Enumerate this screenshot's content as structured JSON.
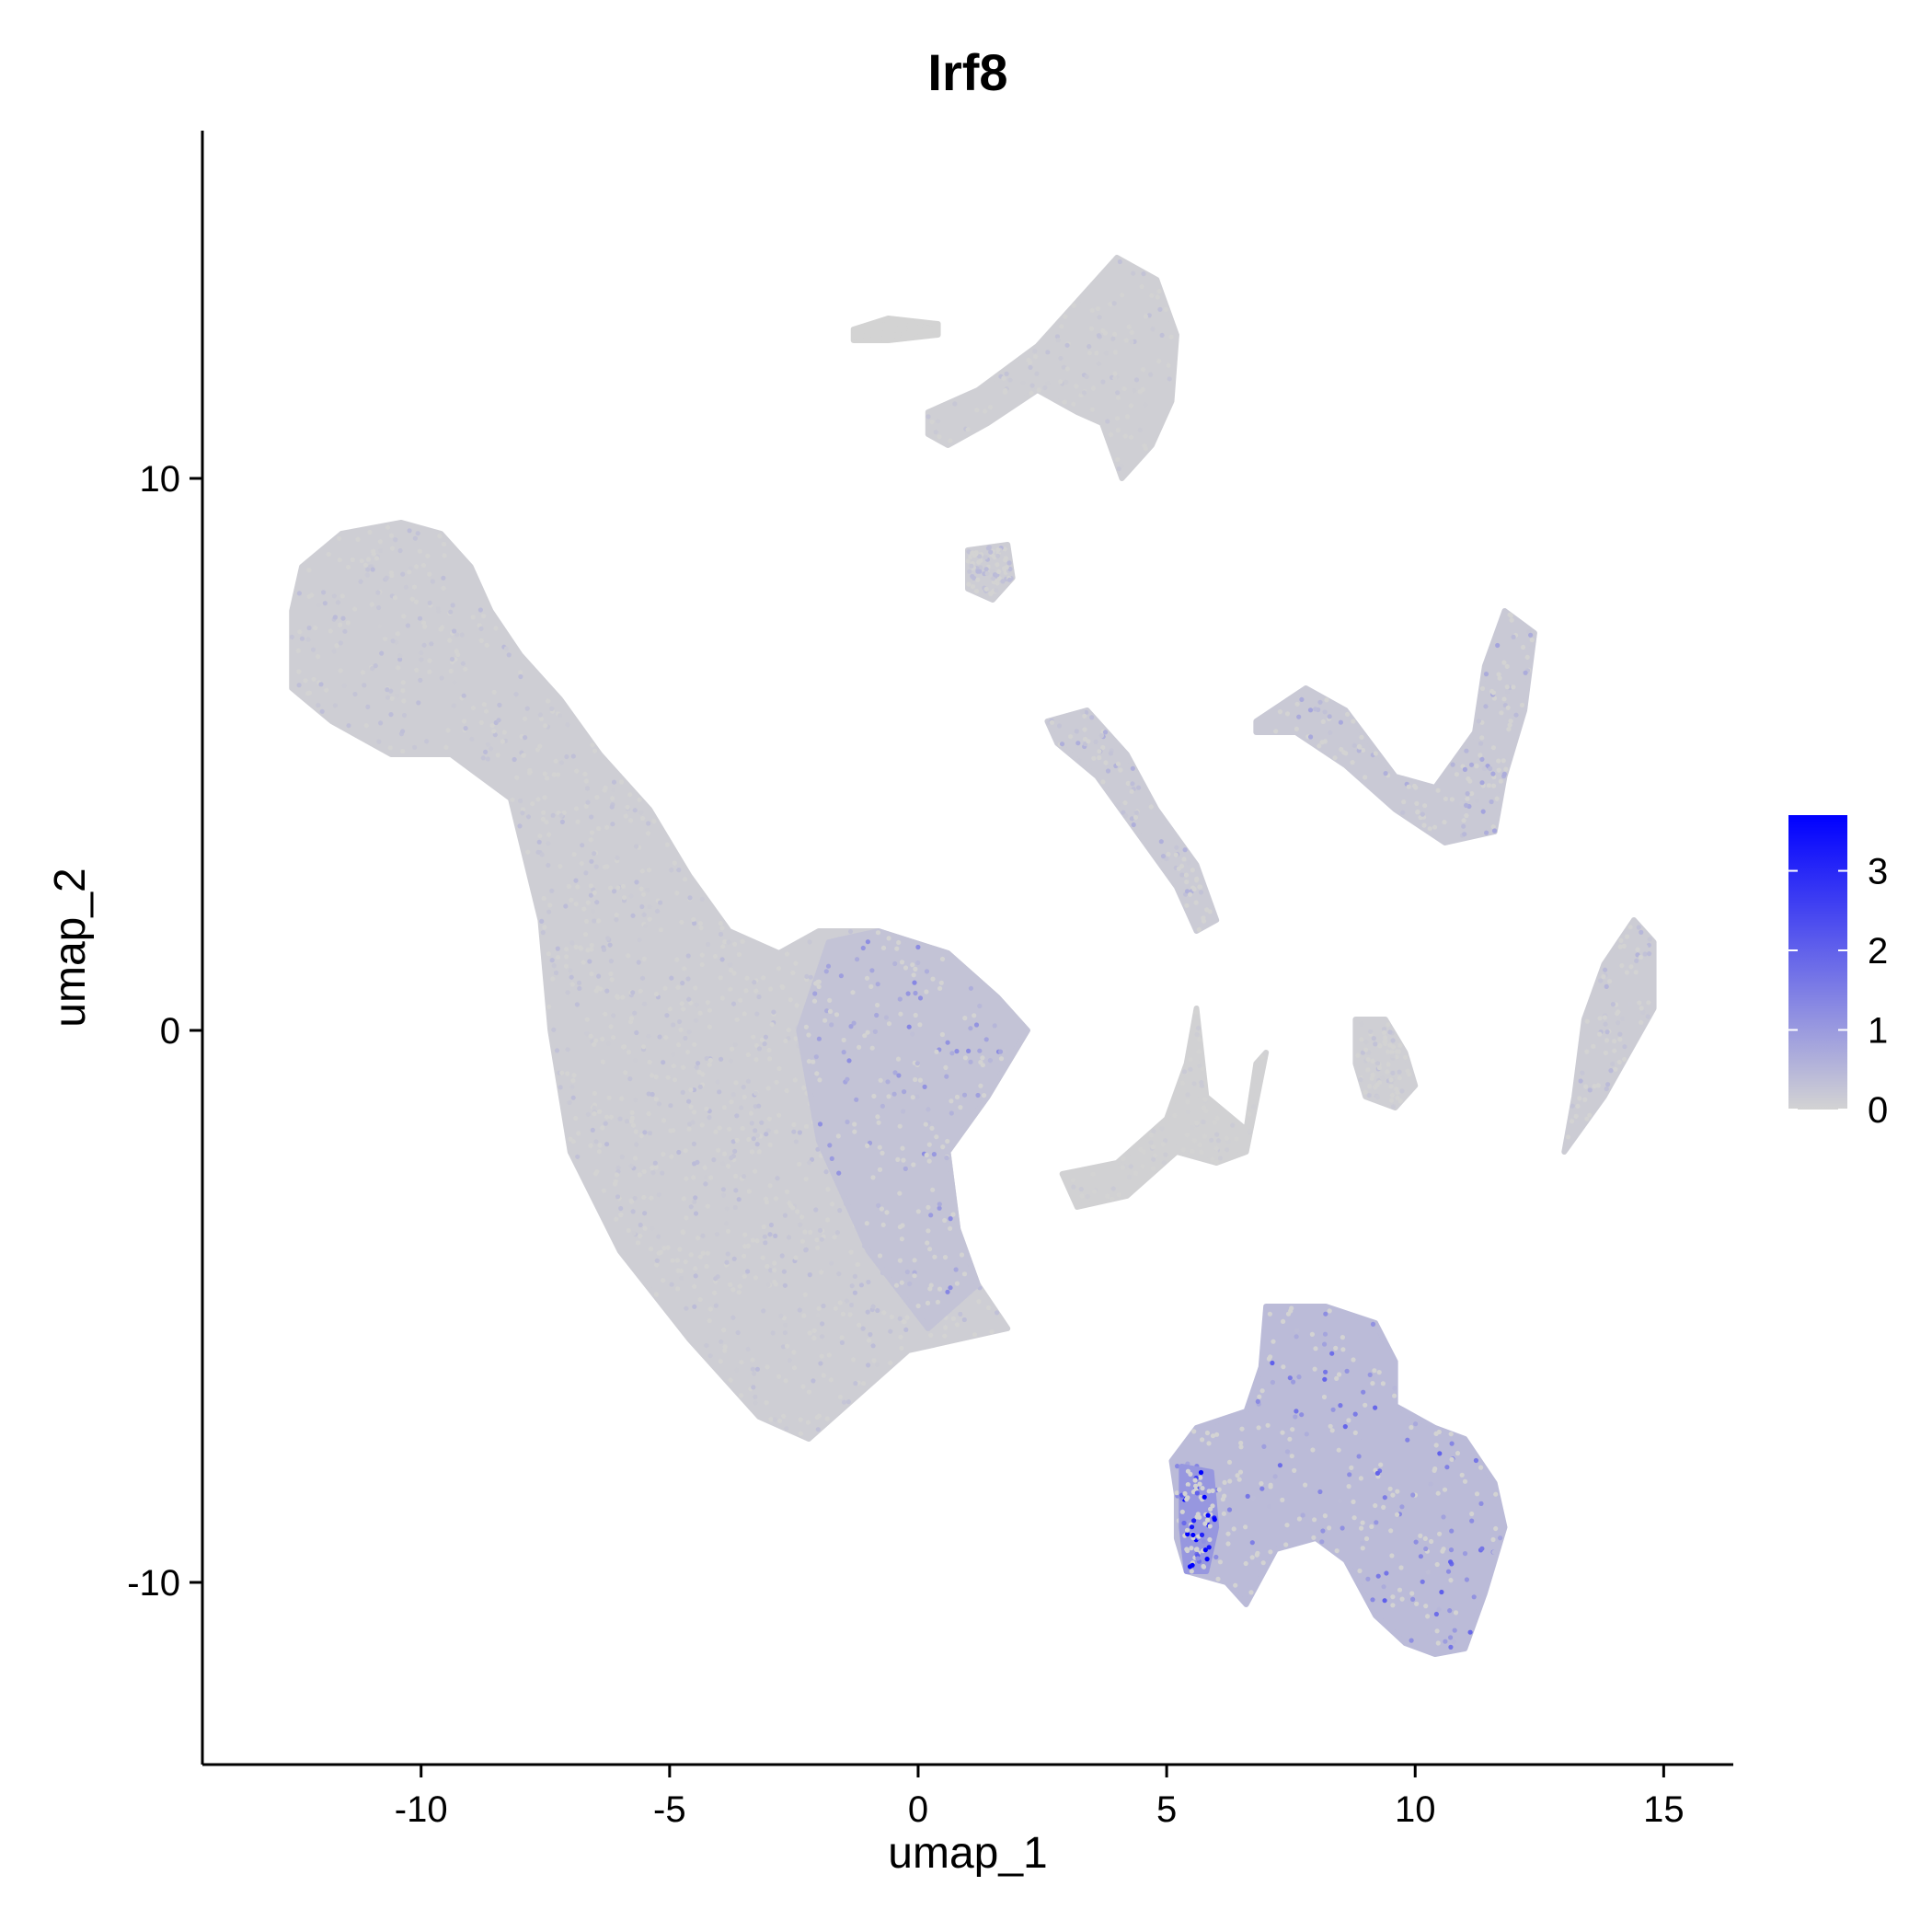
{
  "chart_data": {
    "type": "scatter",
    "title": "Irf8",
    "xlabel": "umap_1",
    "ylabel": "umap_2",
    "xlim": [
      -14.4,
      16.4
    ],
    "ylim": [
      -13.3,
      16.3
    ],
    "xticks": [
      -10,
      -5,
      0,
      5,
      10,
      15
    ],
    "yticks": [
      -10,
      0,
      10
    ],
    "xtick_labels": [
      "-10",
      "-5",
      "0",
      "5",
      "10",
      "15"
    ],
    "ytick_labels": [
      "-10",
      "0",
      "10"
    ],
    "grid": false,
    "legend": {
      "type": "colorbar",
      "placement": "right",
      "min": 0,
      "max": 3.7,
      "ticks": [
        0,
        1,
        2,
        3
      ],
      "tick_labels": [
        "0",
        "1",
        "2",
        "3"
      ],
      "color_low": "#d3d3d3",
      "color_high": "#0000ff"
    },
    "clusters": [
      {
        "name": "main-body",
        "expression_mean": 0.25,
        "outline": [
          [
            -12.4,
            8.4
          ],
          [
            -11.6,
            9.0
          ],
          [
            -10.4,
            9.2
          ],
          [
            -9.6,
            9.0
          ],
          [
            -9.0,
            8.4
          ],
          [
            -8.6,
            7.6
          ],
          [
            -8.0,
            6.8
          ],
          [
            -7.2,
            6.0
          ],
          [
            -6.4,
            5.0
          ],
          [
            -5.4,
            4.0
          ],
          [
            -4.6,
            2.8
          ],
          [
            -3.8,
            1.8
          ],
          [
            -2.8,
            1.4
          ],
          [
            -2.0,
            1.8
          ],
          [
            -0.8,
            1.8
          ],
          [
            0.6,
            1.4
          ],
          [
            1.6,
            0.6
          ],
          [
            2.2,
            0.0
          ],
          [
            1.4,
            -1.2
          ],
          [
            0.6,
            -2.2
          ],
          [
            0.8,
            -3.6
          ],
          [
            1.2,
            -4.6
          ],
          [
            1.8,
            -5.4
          ],
          [
            0.8,
            -5.6
          ],
          [
            -0.2,
            -5.8
          ],
          [
            -1.2,
            -6.6
          ],
          [
            -2.2,
            -7.4
          ],
          [
            -3.2,
            -7.0
          ],
          [
            -4.6,
            -5.6
          ],
          [
            -6.0,
            -4.0
          ],
          [
            -7.0,
            -2.2
          ],
          [
            -7.4,
            0.0
          ],
          [
            -7.6,
            2.0
          ],
          [
            -8.2,
            4.2
          ],
          [
            -9.4,
            5.0
          ],
          [
            -10.6,
            5.0
          ],
          [
            -11.8,
            5.6
          ],
          [
            -12.6,
            6.2
          ],
          [
            -12.6,
            7.6
          ]
        ]
      },
      {
        "name": "main-body-expressing-region",
        "expression_mean": 0.8,
        "outline": [
          [
            -1.8,
            1.6
          ],
          [
            -0.8,
            1.8
          ],
          [
            0.6,
            1.4
          ],
          [
            1.6,
            0.6
          ],
          [
            2.2,
            0.0
          ],
          [
            1.4,
            -1.2
          ],
          [
            0.6,
            -2.2
          ],
          [
            0.8,
            -3.6
          ],
          [
            1.2,
            -4.6
          ],
          [
            0.2,
            -5.4
          ],
          [
            -1.0,
            -4.0
          ],
          [
            -2.0,
            -2.0
          ],
          [
            -2.4,
            0.0
          ]
        ]
      },
      {
        "name": "top-arc-cluster",
        "expression_mean": 0.2,
        "outline": [
          [
            0.2,
            11.2
          ],
          [
            1.2,
            11.6
          ],
          [
            2.4,
            12.4
          ],
          [
            3.4,
            13.4
          ],
          [
            4.0,
            14.0
          ],
          [
            4.8,
            13.6
          ],
          [
            5.2,
            12.6
          ],
          [
            5.1,
            11.4
          ],
          [
            4.7,
            10.6
          ],
          [
            4.1,
            10.0
          ],
          [
            3.7,
            11.0
          ],
          [
            3.2,
            11.2
          ],
          [
            2.4,
            11.6
          ],
          [
            1.4,
            11.0
          ],
          [
            0.6,
            10.6
          ],
          [
            0.2,
            10.8
          ]
        ]
      },
      {
        "name": "top-left-streak",
        "expression_mean": 0.0,
        "outline": [
          [
            -1.3,
            12.7
          ],
          [
            -0.6,
            12.9
          ],
          [
            0.4,
            12.8
          ],
          [
            0.4,
            12.6
          ],
          [
            -0.6,
            12.5
          ],
          [
            -1.3,
            12.5
          ]
        ]
      },
      {
        "name": "small-island",
        "expression_mean": 0.3,
        "outline": [
          [
            1.0,
            8.7
          ],
          [
            1.8,
            8.8
          ],
          [
            1.9,
            8.2
          ],
          [
            1.5,
            7.8
          ],
          [
            1.0,
            8.0
          ]
        ]
      },
      {
        "name": "mid-curved-streak",
        "expression_mean": 0.4,
        "outline": [
          [
            2.6,
            5.6
          ],
          [
            3.4,
            5.8
          ],
          [
            4.2,
            5.0
          ],
          [
            4.8,
            4.0
          ],
          [
            5.6,
            3.0
          ],
          [
            6.0,
            2.0
          ],
          [
            5.6,
            1.8
          ],
          [
            5.2,
            2.6
          ],
          [
            4.4,
            3.6
          ],
          [
            3.6,
            4.6
          ],
          [
            2.8,
            5.2
          ]
        ]
      },
      {
        "name": "right-v-cluster",
        "expression_mean": 0.5,
        "outline": [
          [
            6.8,
            5.6
          ],
          [
            7.8,
            6.2
          ],
          [
            8.6,
            5.8
          ],
          [
            9.6,
            4.6
          ],
          [
            10.4,
            4.4
          ],
          [
            11.2,
            5.4
          ],
          [
            11.4,
            6.6
          ],
          [
            11.8,
            7.6
          ],
          [
            12.4,
            7.2
          ],
          [
            12.2,
            5.8
          ],
          [
            11.8,
            4.6
          ],
          [
            11.6,
            3.6
          ],
          [
            10.6,
            3.4
          ],
          [
            9.6,
            4.0
          ],
          [
            8.6,
            4.8
          ],
          [
            7.6,
            5.4
          ],
          [
            6.8,
            5.4
          ]
        ]
      },
      {
        "name": "center-branching-cluster",
        "expression_mean": 0.1,
        "outline": [
          [
            2.9,
            -2.6
          ],
          [
            4.0,
            -2.4
          ],
          [
            5.0,
            -1.6
          ],
          [
            5.4,
            -0.6
          ],
          [
            5.6,
            0.4
          ],
          [
            5.8,
            -1.2
          ],
          [
            6.6,
            -1.8
          ],
          [
            6.8,
            -0.6
          ],
          [
            7.0,
            -0.4
          ],
          [
            6.6,
            -2.2
          ],
          [
            6.0,
            -2.4
          ],
          [
            5.2,
            -2.2
          ],
          [
            4.2,
            -3.0
          ],
          [
            3.2,
            -3.2
          ]
        ]
      },
      {
        "name": "center-small-cluster",
        "expression_mean": 0.2,
        "outline": [
          [
            8.8,
            0.2
          ],
          [
            9.4,
            0.2
          ],
          [
            9.8,
            -0.4
          ],
          [
            10.0,
            -1.0
          ],
          [
            9.6,
            -1.4
          ],
          [
            9.0,
            -1.2
          ],
          [
            8.8,
            -0.6
          ]
        ]
      },
      {
        "name": "right-elongated-cluster",
        "expression_mean": 0.35,
        "outline": [
          [
            13.0,
            -2.2
          ],
          [
            13.8,
            -1.2
          ],
          [
            14.8,
            0.4
          ],
          [
            14.8,
            1.6
          ],
          [
            14.4,
            2.0
          ],
          [
            13.8,
            1.2
          ],
          [
            13.4,
            0.2
          ],
          [
            13.2,
            -1.2
          ]
        ]
      },
      {
        "name": "bottom-complex-cluster",
        "expression_mean": 1.2,
        "outline": [
          [
            5.1,
            -7.8
          ],
          [
            5.6,
            -7.2
          ],
          [
            6.6,
            -6.9
          ],
          [
            6.9,
            -6.1
          ],
          [
            7.0,
            -5.0
          ],
          [
            8.2,
            -5.0
          ],
          [
            9.2,
            -5.3
          ],
          [
            9.6,
            -6.0
          ],
          [
            9.6,
            -6.8
          ],
          [
            10.4,
            -7.2
          ],
          [
            11.0,
            -7.4
          ],
          [
            11.6,
            -8.2
          ],
          [
            11.8,
            -9.0
          ],
          [
            11.4,
            -10.2
          ],
          [
            11.0,
            -11.2
          ],
          [
            10.4,
            -11.3
          ],
          [
            9.8,
            -11.1
          ],
          [
            9.2,
            -10.6
          ],
          [
            8.6,
            -9.6
          ],
          [
            8.0,
            -9.2
          ],
          [
            7.2,
            -9.4
          ],
          [
            6.6,
            -10.4
          ],
          [
            6.2,
            -10.0
          ],
          [
            5.4,
            -9.8
          ],
          [
            5.2,
            -9.2
          ],
          [
            5.2,
            -8.4
          ]
        ]
      },
      {
        "name": "bottom-high-expression-patch",
        "expression_mean": 3.0,
        "outline": [
          [
            5.3,
            -7.9
          ],
          [
            5.9,
            -8.0
          ],
          [
            6.0,
            -9.0
          ],
          [
            5.8,
            -9.8
          ],
          [
            5.4,
            -9.8
          ],
          [
            5.3,
            -9.0
          ]
        ]
      }
    ]
  }
}
